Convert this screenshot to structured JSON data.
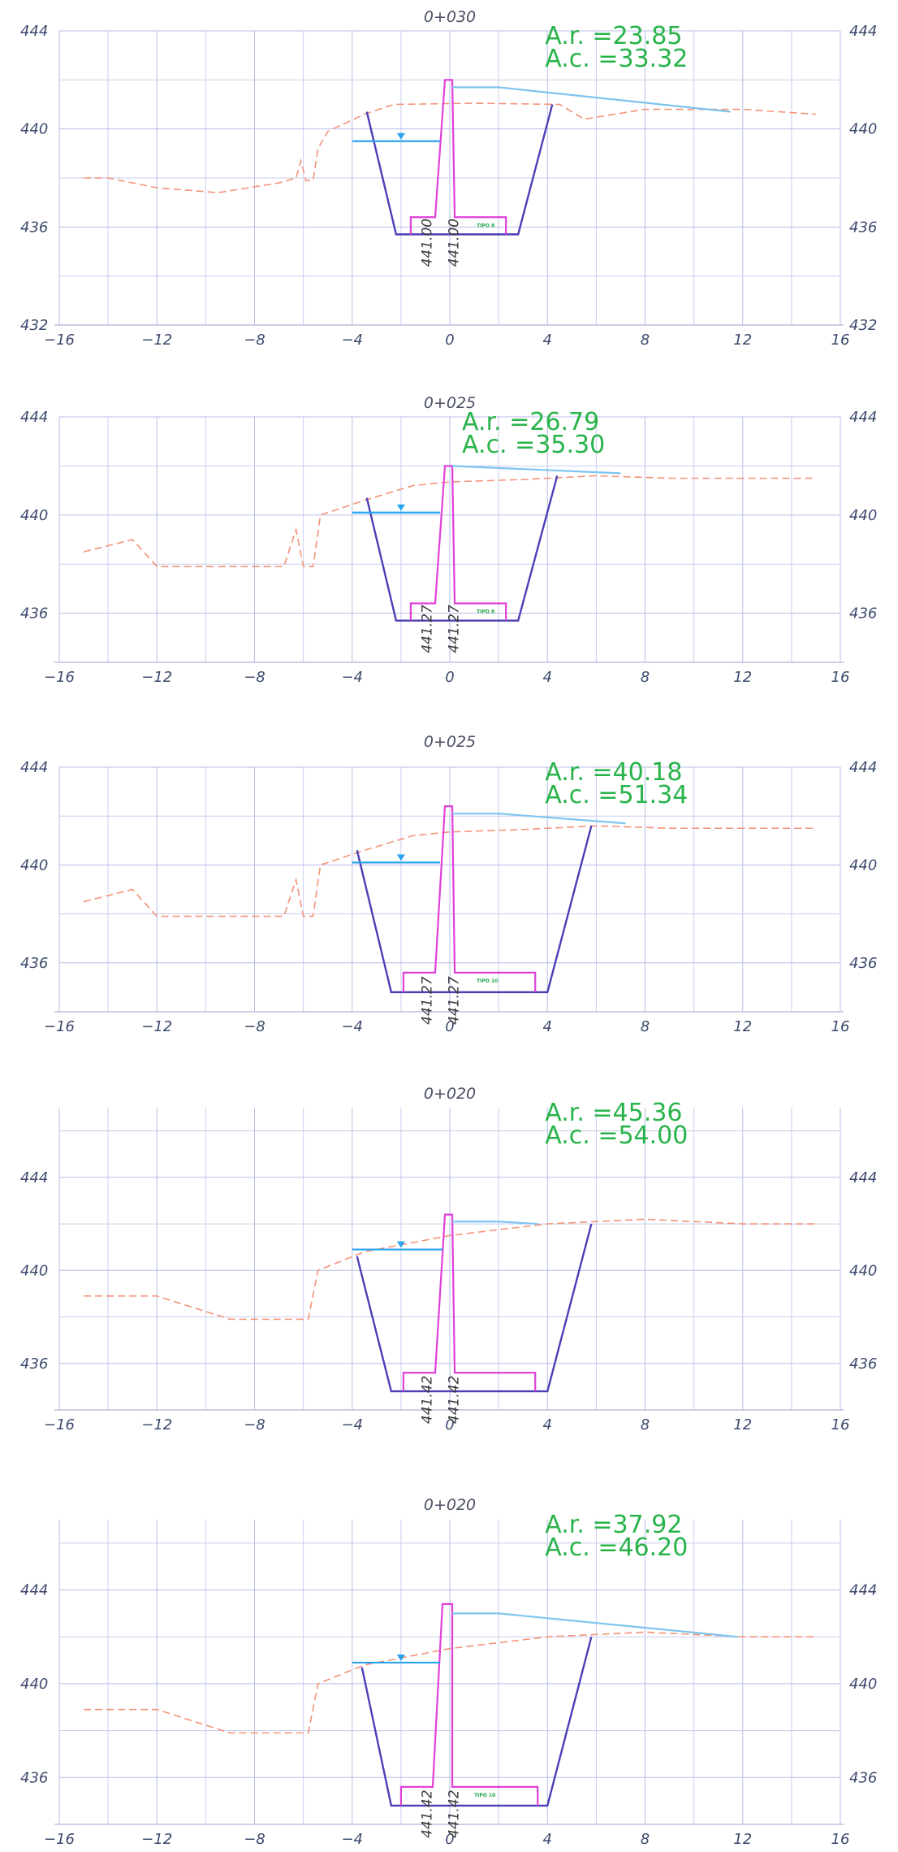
{
  "colors": {
    "grid": "#c9cdef",
    "gridMajor": "#b8bde8",
    "terrain": "#f4937a",
    "excavation": "#4b3fb5",
    "structure": "#e040d8",
    "water": "#29a3ef",
    "road": "#7ec4ef",
    "areaText": "#28b34a",
    "tick": "#3d4a6e"
  },
  "sections": [
    {
      "title": "0+030",
      "ar": "A.r. =23.85",
      "ac": "A.c. =33.32",
      "elevLeft": "441.00",
      "elevRight": "441.00",
      "tipo": "TIPO 8",
      "xTicks": [
        "−16",
        "−12",
        "−8",
        "−4",
        "0",
        "4",
        "8",
        "12",
        "16"
      ],
      "yTicks": [
        {
          "label": "444",
          "v": 444
        },
        {
          "label": "440",
          "v": 440
        },
        {
          "label": "436",
          "v": 436
        },
        {
          "label": "432",
          "v": 432
        }
      ],
      "ymin": 432,
      "ymax": 444,
      "terrain": [
        [
          -15,
          438
        ],
        [
          -14,
          438
        ],
        [
          -12,
          437.6
        ],
        [
          -9.5,
          437.4
        ],
        [
          -7,
          437.8
        ],
        [
          -6.3,
          438
        ],
        [
          -6.1,
          438.7
        ],
        [
          -5.9,
          437.9
        ],
        [
          -5.6,
          437.9
        ],
        [
          -5.4,
          439.2
        ],
        [
          -5,
          439.9
        ],
        [
          -3.5,
          440.6
        ],
        [
          -2.3,
          441
        ],
        [
          1,
          441.05
        ],
        [
          4.5,
          441
        ],
        [
          5,
          440.7
        ],
        [
          5.5,
          440.4
        ],
        [
          8,
          440.8
        ],
        [
          12,
          440.8
        ],
        [
          15,
          440.6
        ]
      ],
      "exc": {
        "tl": [
          -3.4,
          440.7
        ],
        "bl": [
          -2.2,
          435.7
        ],
        "br": [
          2.8,
          435.7
        ],
        "tr": [
          4.2,
          441
        ]
      },
      "wall": {
        "baseL": -0.6,
        "topL": -0.2,
        "topR": 0.1,
        "baseR": 0.2,
        "top": 442,
        "base": 436.4
      },
      "footL": [
        -1.6,
        -0.6
      ],
      "footR": [
        0.2,
        2.3
      ],
      "footTop": 436.4,
      "footBot": 435.7,
      "water": {
        "x1": -4,
        "x2": -0.4,
        "y": 439.5,
        "mx": -2
      },
      "road": [
        [
          0.1,
          441.7
        ],
        [
          2,
          441.7
        ],
        [
          11.5,
          440.7
        ]
      ],
      "areaX": 3.9
    },
    {
      "title": "0+025",
      "ar": "A.r. =26.79",
      "ac": "A.c. =35.30",
      "elevLeft": "441.27",
      "elevRight": "441.27",
      "tipo": "TIPO 8",
      "xTicks": [
        "−16",
        "−12",
        "−8",
        "−4",
        "0",
        "4",
        "8",
        "12",
        "16"
      ],
      "yTicks": [
        {
          "label": "444",
          "v": 444
        },
        {
          "label": "440",
          "v": 440
        },
        {
          "label": "436",
          "v": 436
        }
      ],
      "ymin": 434,
      "ymax": 444,
      "terrain": [
        [
          -15,
          438.5
        ],
        [
          -13,
          439
        ],
        [
          -12,
          437.9
        ],
        [
          -6.8,
          437.9
        ],
        [
          -6.3,
          439.4
        ],
        [
          -6,
          437.9
        ],
        [
          -5.6,
          437.9
        ],
        [
          -5.3,
          440
        ],
        [
          -3.5,
          440.6
        ],
        [
          -1.5,
          441.2
        ],
        [
          0,
          441.35
        ],
        [
          3,
          441.45
        ],
        [
          6,
          441.6
        ],
        [
          9,
          441.5
        ],
        [
          15,
          441.5
        ]
      ],
      "exc": {
        "tl": [
          -3.4,
          440.7
        ],
        "bl": [
          -2.2,
          435.7
        ],
        "br": [
          2.8,
          435.7
        ],
        "tr": [
          4.4,
          441.6
        ]
      },
      "wall": {
        "baseL": -0.6,
        "topL": -0.2,
        "topR": 0.1,
        "baseR": 0.2,
        "top": 442,
        "base": 436.4
      },
      "footL": [
        -1.6,
        -0.6
      ],
      "footR": [
        0.2,
        2.3
      ],
      "footTop": 436.4,
      "footBot": 435.7,
      "water": {
        "x1": -4,
        "x2": -0.4,
        "y": 440.1,
        "mx": -2
      },
      "road": [
        [
          0.1,
          442
        ],
        [
          7,
          441.7
        ]
      ],
      "areaX": 0.5
    },
    {
      "title": "0+025",
      "ar": "A.r. =40.18",
      "ac": "A.c. =51.34",
      "elevLeft": "441.27",
      "elevRight": "441.27",
      "tipo": "TIPO 10",
      "xTicks": [
        "−16",
        "−12",
        "−8",
        "−4",
        "0",
        "4",
        "8",
        "12",
        "16"
      ],
      "yTicks": [
        {
          "label": "444",
          "v": 444
        },
        {
          "label": "440",
          "v": 440
        },
        {
          "label": "436",
          "v": 436
        }
      ],
      "ymin": 434,
      "ymax": 444,
      "terrain": [
        [
          -15,
          438.5
        ],
        [
          -13,
          439
        ],
        [
          -12,
          437.9
        ],
        [
          -6.8,
          437.9
        ],
        [
          -6.3,
          439.4
        ],
        [
          -6,
          437.9
        ],
        [
          -5.6,
          437.9
        ],
        [
          -5.3,
          440
        ],
        [
          -3.5,
          440.6
        ],
        [
          -1.5,
          441.2
        ],
        [
          0,
          441.35
        ],
        [
          3,
          441.45
        ],
        [
          6,
          441.6
        ],
        [
          9,
          441.5
        ],
        [
          15,
          441.5
        ]
      ],
      "exc": {
        "tl": [
          -3.8,
          440.6
        ],
        "bl": [
          -2.4,
          434.8
        ],
        "br": [
          4,
          434.8
        ],
        "tr": [
          5.8,
          441.6
        ]
      },
      "wall": {
        "baseL": -0.6,
        "topL": -0.2,
        "topR": 0.1,
        "baseR": 0.2,
        "top": 442.4,
        "base": 435.6
      },
      "footL": [
        -1.9,
        -0.6
      ],
      "footR": [
        0.2,
        3.5
      ],
      "footTop": 435.6,
      "footBot": 434.8,
      "water": {
        "x1": -4,
        "x2": -0.4,
        "y": 440.1,
        "mx": -2
      },
      "road": [
        [
          0.1,
          442.1
        ],
        [
          2,
          442.1
        ],
        [
          7.2,
          441.7
        ]
      ],
      "areaX": 3.9
    },
    {
      "title": "0+020",
      "ar": "A.r. =45.36",
      "ac": "A.c. =54.00",
      "elevLeft": "441.42",
      "elevRight": "441.42",
      "tipo": "",
      "xTicks": [
        "−16",
        "−12",
        "−8",
        "−4",
        "0",
        "4",
        "8",
        "12",
        "16"
      ],
      "yTicks": [
        {
          "label": "444",
          "v": 444
        },
        {
          "label": "440",
          "v": 440
        },
        {
          "label": "436",
          "v": 436
        }
      ],
      "ymin": 434,
      "ymax": 447,
      "terrain": [
        [
          -15,
          438.9
        ],
        [
          -12,
          438.9
        ],
        [
          -9,
          437.9
        ],
        [
          -5.8,
          437.9
        ],
        [
          -5.4,
          440
        ],
        [
          -3.5,
          440.8
        ],
        [
          0,
          441.5
        ],
        [
          4,
          442
        ],
        [
          8,
          442.2
        ],
        [
          12,
          442
        ],
        [
          15,
          442
        ]
      ],
      "exc": {
        "tl": [
          -3.8,
          440.6
        ],
        "bl": [
          -2.4,
          434.8
        ],
        "br": [
          4,
          434.8
        ],
        "tr": [
          5.8,
          442
        ]
      },
      "wall": {
        "baseL": -0.6,
        "topL": -0.2,
        "topR": 0.1,
        "baseR": 0.2,
        "top": 442.4,
        "base": 435.6
      },
      "footL": [
        -1.9,
        -0.6
      ],
      "footR": [
        0.2,
        3.5
      ],
      "footTop": 435.6,
      "footBot": 434.8,
      "water": {
        "x1": -4,
        "x2": -0.3,
        "y": 440.9,
        "mx": -2
      },
      "road": [
        [
          0.1,
          442.1
        ],
        [
          2,
          442.1
        ],
        [
          3.6,
          442
        ]
      ],
      "areaX": 3.9
    },
    {
      "title": "0+020",
      "ar": "A.r. =37.92",
      "ac": "A.c. =46.20",
      "elevLeft": "441.42",
      "elevRight": "441.42",
      "tipo": "TIPO 10",
      "xTicks": [
        "−16",
        "−12",
        "−8",
        "−4",
        "0",
        "4",
        "8",
        "12",
        "16"
      ],
      "yTicks": [
        {
          "label": "444",
          "v": 444
        },
        {
          "label": "440",
          "v": 440
        },
        {
          "label": "436",
          "v": 436
        }
      ],
      "ymin": 434,
      "ymax": 447,
      "terrain": [
        [
          -15,
          438.9
        ],
        [
          -12,
          438.9
        ],
        [
          -9,
          437.9
        ],
        [
          -5.8,
          437.9
        ],
        [
          -5.4,
          440
        ],
        [
          -3.5,
          440.8
        ],
        [
          0,
          441.5
        ],
        [
          4,
          442
        ],
        [
          8,
          442.2
        ],
        [
          12,
          442
        ],
        [
          15,
          442
        ]
      ],
      "exc": {
        "tl": [
          -3.6,
          440.7
        ],
        "bl": [
          -2.4,
          434.8
        ],
        "br": [
          4,
          434.8
        ],
        "tr": [
          5.8,
          442
        ]
      },
      "wall": {
        "baseL": -0.7,
        "topL": -0.3,
        "topR": 0.1,
        "baseR": 0.1,
        "top": 443.4,
        "base": 435.6
      },
      "footL": [
        -2,
        -0.7
      ],
      "footR": [
        0.1,
        3.6
      ],
      "footTop": 435.6,
      "footBot": 434.8,
      "water": {
        "x1": -4,
        "x2": -0.4,
        "y": 440.9,
        "mx": -2
      },
      "road": [
        [
          0.1,
          443
        ],
        [
          2,
          443
        ],
        [
          11.8,
          442
        ]
      ],
      "areaX": 3.9
    }
  ]
}
